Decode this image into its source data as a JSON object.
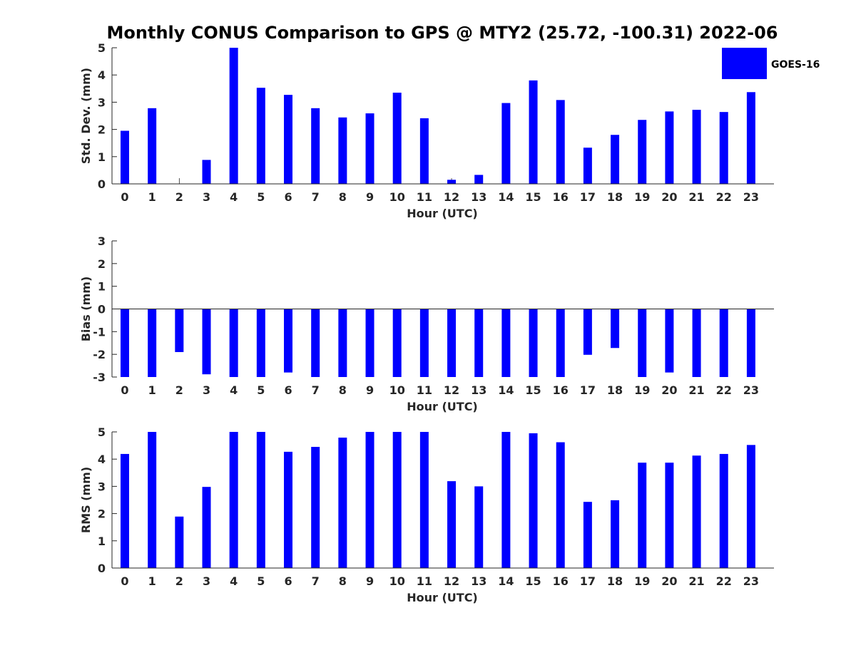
{
  "title": "Monthly CONUS Comparison to GPS @ MTY2 (25.72, -100.31) 2022-06",
  "legend": {
    "label": "GOES-16",
    "color": "#0000ff"
  },
  "chart_data": [
    {
      "type": "bar",
      "ylabel": "Std. Dev. (mm)",
      "xlabel": "Hour (UTC)",
      "ylim": [
        0,
        5
      ],
      "yticks": [
        0,
        1,
        2,
        3,
        4,
        5
      ],
      "categories": [
        "0",
        "1",
        "2",
        "3",
        "4",
        "5",
        "6",
        "7",
        "8",
        "9",
        "10",
        "11",
        "12",
        "13",
        "14",
        "15",
        "16",
        "17",
        "18",
        "19",
        "20",
        "21",
        "22",
        "23"
      ],
      "series": [
        {
          "name": "GOES-16",
          "values": [
            1.95,
            2.78,
            0,
            0.88,
            5.0,
            3.53,
            3.27,
            2.78,
            2.44,
            2.59,
            3.35,
            2.41,
            0.15,
            0.33,
            2.97,
            3.8,
            3.08,
            1.33,
            1.8,
            2.35,
            2.66,
            2.72,
            2.64,
            3.37
          ]
        }
      ]
    },
    {
      "type": "bar",
      "ylabel": "Bias (mm)",
      "xlabel": "Hour (UTC)",
      "ylim": [
        -3,
        3
      ],
      "yticks": [
        -3,
        -2,
        -1,
        0,
        1,
        2,
        3
      ],
      "categories": [
        "0",
        "1",
        "2",
        "3",
        "4",
        "5",
        "6",
        "7",
        "8",
        "9",
        "10",
        "11",
        "12",
        "13",
        "14",
        "15",
        "16",
        "17",
        "18",
        "19",
        "20",
        "21",
        "22",
        "23"
      ],
      "series": [
        {
          "name": "GOES-16",
          "values": [
            -3,
            -3,
            -1.9,
            -2.88,
            -3,
            -3,
            -2.8,
            -3,
            -3,
            -3,
            -3,
            -3,
            -3,
            -3,
            -3,
            -3,
            -3,
            -2.02,
            -1.72,
            -3,
            -2.8,
            -3,
            -3,
            -3
          ]
        }
      ]
    },
    {
      "type": "bar",
      "ylabel": "RMS (mm)",
      "xlabel": "Hour (UTC)",
      "ylim": [
        0,
        5
      ],
      "yticks": [
        0,
        1,
        2,
        3,
        4,
        5
      ],
      "categories": [
        "0",
        "1",
        "2",
        "3",
        "4",
        "5",
        "6",
        "7",
        "8",
        "9",
        "10",
        "11",
        "12",
        "13",
        "14",
        "15",
        "16",
        "17",
        "18",
        "19",
        "20",
        "21",
        "22",
        "23"
      ],
      "series": [
        {
          "name": "GOES-16",
          "values": [
            4.19,
            5.0,
            1.89,
            2.98,
            5.0,
            5.0,
            4.27,
            4.45,
            4.79,
            5.0,
            5.0,
            5.0,
            3.19,
            3.0,
            5.0,
            4.95,
            4.62,
            2.43,
            2.49,
            3.87,
            3.87,
            4.13,
            4.19,
            4.52
          ]
        }
      ]
    }
  ]
}
